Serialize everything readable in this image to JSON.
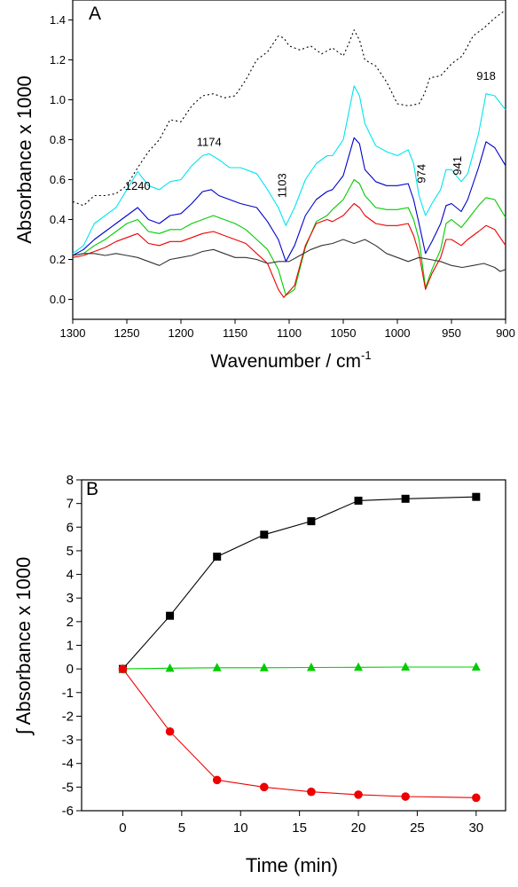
{
  "chart_data": [
    {
      "type": "line",
      "panel": "A",
      "xlabel": "Wavenumber / cm",
      "xlabel_sup": "-1",
      "ylabel": "Absorbance x 1000",
      "xlim": [
        1300,
        900
      ],
      "ylim": [
        -0.1,
        1.5
      ],
      "x_reversed": true,
      "x_ticks": [
        "1300",
        "1250",
        "1200",
        "1150",
        "1100",
        "1050",
        "1000",
        "950",
        "900"
      ],
      "y_ticks": [
        "0.0",
        "0.2",
        "0.4",
        "0.6",
        "0.8",
        "1.0",
        "1.2",
        "1.4"
      ],
      "grid": false,
      "annotations": [
        {
          "text": "1240",
          "x": 1240,
          "y": 0.55,
          "rotate": false
        },
        {
          "text": "1174",
          "x": 1174,
          "y": 0.77,
          "rotate": false
        },
        {
          "text": "1103",
          "x": 1103,
          "y": 0.57,
          "rotate": true
        },
        {
          "text": "974",
          "x": 974,
          "y": 0.63,
          "rotate": true
        },
        {
          "text": "941",
          "x": 941,
          "y": 0.67,
          "rotate": true
        },
        {
          "text": "918",
          "x": 918,
          "y": 1.1,
          "rotate": false
        }
      ],
      "series": [
        {
          "color": "#000000",
          "dashed": true,
          "x": [
            1300,
            1290,
            1280,
            1270,
            1260,
            1250,
            1240,
            1230,
            1220,
            1210,
            1200,
            1190,
            1180,
            1170,
            1160,
            1150,
            1140,
            1130,
            1120,
            1110,
            1105,
            1100,
            1090,
            1080,
            1070,
            1060,
            1050,
            1045,
            1040,
            1035,
            1030,
            1020,
            1010,
            1000,
            990,
            980,
            975,
            970,
            960,
            950,
            940,
            930,
            920,
            910,
            900
          ],
          "y": [
            0.49,
            0.47,
            0.52,
            0.52,
            0.53,
            0.57,
            0.66,
            0.74,
            0.8,
            0.9,
            0.89,
            0.97,
            1.02,
            1.03,
            1.01,
            1.02,
            1.1,
            1.2,
            1.24,
            1.32,
            1.31,
            1.27,
            1.25,
            1.27,
            1.23,
            1.26,
            1.22,
            1.28,
            1.35,
            1.3,
            1.2,
            1.17,
            1.09,
            0.98,
            0.97,
            0.98,
            1.03,
            1.11,
            1.12,
            1.18,
            1.22,
            1.32,
            1.36,
            1.41,
            1.45
          ]
        },
        {
          "color": "#00e5ee",
          "x": [
            1300,
            1290,
            1280,
            1270,
            1260,
            1250,
            1240,
            1230,
            1220,
            1210,
            1200,
            1190,
            1180,
            1174,
            1165,
            1155,
            1145,
            1130,
            1120,
            1110,
            1103,
            1095,
            1085,
            1075,
            1065,
            1060,
            1050,
            1040,
            1035,
            1030,
            1020,
            1010,
            1000,
            990,
            985,
            980,
            974,
            968,
            960,
            955,
            950,
            941,
            935,
            925,
            918,
            910,
            900
          ],
          "y": [
            0.23,
            0.27,
            0.38,
            0.42,
            0.46,
            0.55,
            0.64,
            0.57,
            0.55,
            0.59,
            0.6,
            0.67,
            0.72,
            0.73,
            0.7,
            0.66,
            0.66,
            0.63,
            0.55,
            0.46,
            0.37,
            0.46,
            0.6,
            0.68,
            0.72,
            0.72,
            0.8,
            1.07,
            1.02,
            0.88,
            0.77,
            0.74,
            0.72,
            0.75,
            0.68,
            0.52,
            0.42,
            0.48,
            0.55,
            0.65,
            0.65,
            0.59,
            0.63,
            0.83,
            1.03,
            1.02,
            0.95
          ]
        },
        {
          "color": "#0000cc",
          "x": [
            1300,
            1290,
            1280,
            1270,
            1260,
            1250,
            1240,
            1230,
            1220,
            1210,
            1200,
            1190,
            1180,
            1172,
            1165,
            1155,
            1145,
            1130,
            1120,
            1110,
            1103,
            1095,
            1085,
            1075,
            1065,
            1060,
            1050,
            1040,
            1035,
            1030,
            1020,
            1010,
            1000,
            990,
            985,
            980,
            974,
            968,
            960,
            955,
            950,
            941,
            935,
            925,
            918,
            910,
            900
          ],
          "y": [
            0.22,
            0.25,
            0.3,
            0.34,
            0.38,
            0.42,
            0.46,
            0.4,
            0.38,
            0.42,
            0.43,
            0.48,
            0.54,
            0.55,
            0.52,
            0.5,
            0.48,
            0.46,
            0.39,
            0.3,
            0.19,
            0.27,
            0.42,
            0.5,
            0.54,
            0.55,
            0.62,
            0.81,
            0.78,
            0.65,
            0.59,
            0.57,
            0.57,
            0.58,
            0.5,
            0.38,
            0.23,
            0.29,
            0.38,
            0.47,
            0.48,
            0.44,
            0.5,
            0.66,
            0.79,
            0.76,
            0.67
          ]
        },
        {
          "color": "#00cc00",
          "x": [
            1300,
            1290,
            1280,
            1270,
            1260,
            1250,
            1240,
            1230,
            1220,
            1210,
            1200,
            1190,
            1180,
            1170,
            1160,
            1150,
            1140,
            1130,
            1120,
            1110,
            1103,
            1095,
            1085,
            1075,
            1065,
            1060,
            1050,
            1040,
            1035,
            1030,
            1020,
            1010,
            1000,
            990,
            985,
            980,
            974,
            968,
            960,
            955,
            950,
            941,
            935,
            925,
            918,
            910,
            900
          ],
          "y": [
            0.22,
            0.23,
            0.27,
            0.3,
            0.34,
            0.38,
            0.4,
            0.34,
            0.33,
            0.35,
            0.35,
            0.38,
            0.4,
            0.42,
            0.4,
            0.38,
            0.35,
            0.3,
            0.25,
            0.15,
            0.02,
            0.05,
            0.26,
            0.39,
            0.42,
            0.45,
            0.5,
            0.6,
            0.58,
            0.52,
            0.46,
            0.45,
            0.45,
            0.46,
            0.4,
            0.3,
            0.06,
            0.15,
            0.25,
            0.38,
            0.4,
            0.36,
            0.4,
            0.47,
            0.51,
            0.5,
            0.41
          ]
        },
        {
          "color": "#ee0000",
          "x": [
            1300,
            1290,
            1280,
            1270,
            1260,
            1250,
            1240,
            1230,
            1220,
            1210,
            1200,
            1190,
            1180,
            1170,
            1160,
            1150,
            1140,
            1130,
            1120,
            1110,
            1105,
            1095,
            1085,
            1075,
            1065,
            1060,
            1050,
            1040,
            1035,
            1030,
            1020,
            1010,
            1000,
            990,
            985,
            980,
            974,
            968,
            960,
            955,
            950,
            941,
            935,
            925,
            918,
            910,
            900
          ],
          "y": [
            0.21,
            0.22,
            0.24,
            0.26,
            0.29,
            0.31,
            0.33,
            0.28,
            0.27,
            0.29,
            0.29,
            0.31,
            0.33,
            0.34,
            0.32,
            0.3,
            0.28,
            0.23,
            0.18,
            0.05,
            0.01,
            0.07,
            0.27,
            0.38,
            0.4,
            0.39,
            0.42,
            0.48,
            0.46,
            0.42,
            0.38,
            0.37,
            0.37,
            0.38,
            0.32,
            0.23,
            0.05,
            0.13,
            0.21,
            0.3,
            0.3,
            0.27,
            0.3,
            0.34,
            0.37,
            0.35,
            0.27
          ]
        },
        {
          "color": "#333333",
          "x": [
            1300,
            1290,
            1280,
            1270,
            1260,
            1250,
            1240,
            1230,
            1220,
            1210,
            1200,
            1190,
            1180,
            1170,
            1160,
            1150,
            1140,
            1130,
            1120,
            1110,
            1100,
            1090,
            1080,
            1070,
            1060,
            1050,
            1040,
            1030,
            1020,
            1010,
            1000,
            990,
            980,
            970,
            960,
            950,
            940,
            930,
            920,
            910,
            905,
            900
          ],
          "y": [
            0.22,
            0.23,
            0.23,
            0.22,
            0.23,
            0.22,
            0.21,
            0.19,
            0.17,
            0.2,
            0.21,
            0.22,
            0.24,
            0.25,
            0.23,
            0.21,
            0.21,
            0.2,
            0.18,
            0.19,
            0.19,
            0.22,
            0.25,
            0.27,
            0.28,
            0.3,
            0.28,
            0.3,
            0.27,
            0.23,
            0.21,
            0.19,
            0.21,
            0.2,
            0.19,
            0.17,
            0.16,
            0.17,
            0.18,
            0.16,
            0.14,
            0.15
          ]
        }
      ]
    },
    {
      "type": "line",
      "panel": "B",
      "xlabel": "Time (min)",
      "ylabel": "∫ Absorbance x 1000",
      "xlim": [
        -3.5,
        32.5
      ],
      "ylim": [
        -6,
        8
      ],
      "x_ticks": [
        "0",
        "5",
        "10",
        "15",
        "20",
        "25",
        "30"
      ],
      "y_ticks": [
        "-6",
        "-5",
        "-4",
        "-3",
        "-2",
        "-1",
        "0",
        "1",
        "2",
        "3",
        "4",
        "5",
        "6",
        "7",
        "8"
      ],
      "grid": false,
      "series": [
        {
          "color": "#000000",
          "marker": "square",
          "x": [
            0,
            4,
            8,
            12,
            16,
            20,
            24,
            30
          ],
          "y": [
            0.0,
            2.25,
            4.75,
            5.68,
            6.25,
            7.12,
            7.2,
            7.28
          ]
        },
        {
          "color": "#00cc00",
          "marker": "triangle",
          "x": [
            0,
            4,
            8,
            12,
            16,
            20,
            24,
            30
          ],
          "y": [
            0.0,
            0.03,
            0.05,
            0.05,
            0.06,
            0.07,
            0.08,
            0.08
          ]
        },
        {
          "color": "#ee0000",
          "marker": "circle",
          "x": [
            0,
            4,
            8,
            12,
            16,
            20,
            24,
            30
          ],
          "y": [
            0.0,
            -2.65,
            -4.7,
            -5.0,
            -5.2,
            -5.32,
            -5.4,
            -5.45
          ]
        }
      ]
    }
  ]
}
